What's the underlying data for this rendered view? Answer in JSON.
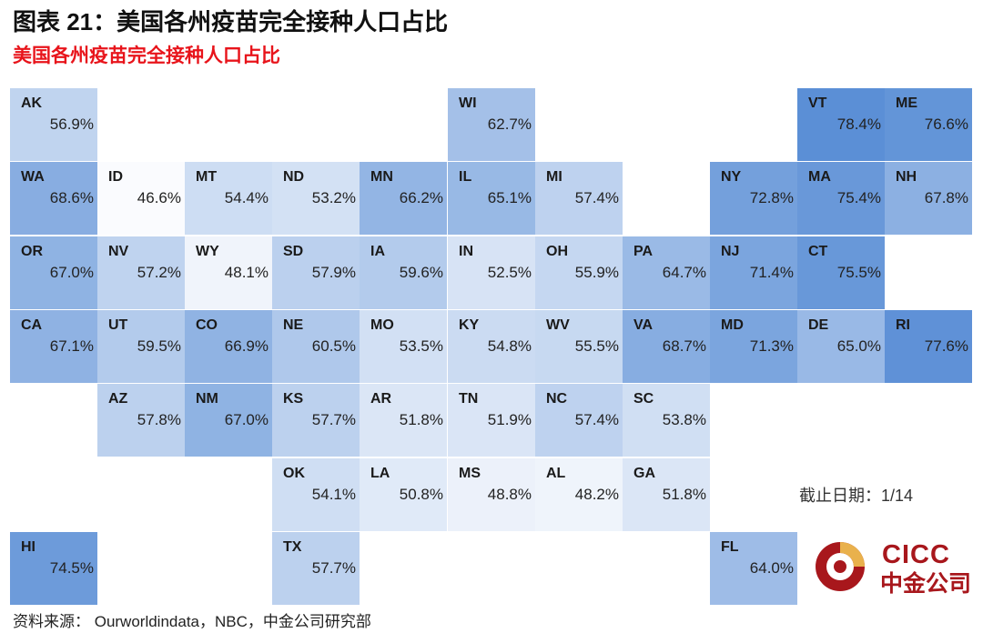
{
  "figure_title": "图表 21：美国各州疫苗完全接种人口占比",
  "subtitle": "美国各州疫苗完全接种人口占比",
  "as_of": "截止日期：1/14",
  "source": "资料来源：  Ourworldindata，NBC，中金公司研究部",
  "logo": {
    "en": "CICC",
    "cn": "中金公司"
  },
  "colors": {
    "scale_low": "#fafbfe",
    "scale_high": "#5b8fd6",
    "title": "#111111",
    "subtitle": "#e8141b",
    "logo": "#a8171c"
  },
  "states": [
    {
      "abbr": "AK",
      "value": 56.9,
      "label": "56.9%"
    },
    {
      "abbr": "WI",
      "value": 62.7,
      "label": "62.7%"
    },
    {
      "abbr": "VT",
      "value": 78.4,
      "label": "78.4%"
    },
    {
      "abbr": "ME",
      "value": 76.6,
      "label": "76.6%"
    },
    {
      "abbr": "WA",
      "value": 68.6,
      "label": "68.6%"
    },
    {
      "abbr": "ID",
      "value": 46.6,
      "label": "46.6%"
    },
    {
      "abbr": "MT",
      "value": 54.4,
      "label": "54.4%"
    },
    {
      "abbr": "ND",
      "value": 53.2,
      "label": "53.2%"
    },
    {
      "abbr": "MN",
      "value": 66.2,
      "label": "66.2%"
    },
    {
      "abbr": "IL",
      "value": 65.1,
      "label": "65.1%"
    },
    {
      "abbr": "MI",
      "value": 57.4,
      "label": "57.4%"
    },
    {
      "abbr": "NY",
      "value": 72.8,
      "label": "72.8%"
    },
    {
      "abbr": "MA",
      "value": 75.4,
      "label": "75.4%"
    },
    {
      "abbr": "NH",
      "value": 67.8,
      "label": "67.8%"
    },
    {
      "abbr": "OR",
      "value": 67.0,
      "label": "67.0%"
    },
    {
      "abbr": "NV",
      "value": 57.2,
      "label": "57.2%"
    },
    {
      "abbr": "WY",
      "value": 48.1,
      "label": "48.1%"
    },
    {
      "abbr": "SD",
      "value": 57.9,
      "label": "57.9%"
    },
    {
      "abbr": "IA",
      "value": 59.6,
      "label": "59.6%"
    },
    {
      "abbr": "IN",
      "value": 52.5,
      "label": "52.5%"
    },
    {
      "abbr": "OH",
      "value": 55.9,
      "label": "55.9%"
    },
    {
      "abbr": "PA",
      "value": 64.7,
      "label": "64.7%"
    },
    {
      "abbr": "NJ",
      "value": 71.4,
      "label": "71.4%"
    },
    {
      "abbr": "CT",
      "value": 75.5,
      "label": "75.5%"
    },
    {
      "abbr": "CA",
      "value": 67.1,
      "label": "67.1%"
    },
    {
      "abbr": "UT",
      "value": 59.5,
      "label": "59.5%"
    },
    {
      "abbr": "CO",
      "value": 66.9,
      "label": "66.9%"
    },
    {
      "abbr": "NE",
      "value": 60.5,
      "label": "60.5%"
    },
    {
      "abbr": "MO",
      "value": 53.5,
      "label": "53.5%"
    },
    {
      "abbr": "KY",
      "value": 54.8,
      "label": "54.8%"
    },
    {
      "abbr": "WV",
      "value": 55.5,
      "label": "55.5%"
    },
    {
      "abbr": "VA",
      "value": 68.7,
      "label": "68.7%"
    },
    {
      "abbr": "MD",
      "value": 71.3,
      "label": "71.3%"
    },
    {
      "abbr": "DE",
      "value": 65.0,
      "label": "65.0%"
    },
    {
      "abbr": "RI",
      "value": 77.6,
      "label": "77.6%"
    },
    {
      "abbr": "AZ",
      "value": 57.8,
      "label": "57.8%"
    },
    {
      "abbr": "NM",
      "value": 67.0,
      "label": "67.0%"
    },
    {
      "abbr": "KS",
      "value": 57.7,
      "label": "57.7%"
    },
    {
      "abbr": "AR",
      "value": 51.8,
      "label": "51.8%"
    },
    {
      "abbr": "TN",
      "value": 51.9,
      "label": "51.9%"
    },
    {
      "abbr": "NC",
      "value": 57.4,
      "label": "57.4%"
    },
    {
      "abbr": "SC",
      "value": 53.8,
      "label": "53.8%"
    },
    {
      "abbr": "OK",
      "value": 54.1,
      "label": "54.1%"
    },
    {
      "abbr": "LA",
      "value": 50.8,
      "label": "50.8%"
    },
    {
      "abbr": "MS",
      "value": 48.8,
      "label": "48.8%"
    },
    {
      "abbr": "AL",
      "value": 48.2,
      "label": "48.2%"
    },
    {
      "abbr": "GA",
      "value": 51.8,
      "label": "51.8%"
    },
    {
      "abbr": "HI",
      "value": 74.5,
      "label": "74.5%"
    },
    {
      "abbr": "TX",
      "value": 57.7,
      "label": "57.7%"
    },
    {
      "abbr": "FL",
      "value": 64.0,
      "label": "64.0%"
    }
  ]
}
